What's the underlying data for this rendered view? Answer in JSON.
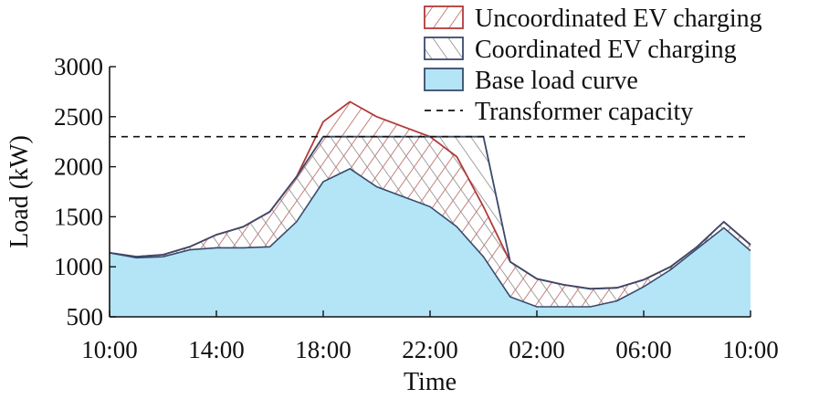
{
  "chart_data": {
    "type": "area",
    "title": "",
    "xlabel": "Time",
    "ylabel": "Load (kW)",
    "x_ticks": [
      "10:00",
      "14:00",
      "18:00",
      "22:00",
      "02:00",
      "06:00",
      "10:00"
    ],
    "y_ticks": [
      500,
      1000,
      1500,
      2000,
      2500,
      3000
    ],
    "ylim": [
      500,
      3000
    ],
    "x_hours_since_start": [
      0,
      1,
      2,
      3,
      4,
      5,
      6,
      7,
      8,
      9,
      10,
      11,
      12,
      13,
      14,
      15,
      16,
      17,
      18,
      19,
      20,
      21,
      22,
      23,
      24
    ],
    "legend_position": "top-right",
    "series": [
      {
        "name": "Uncoordinated EV charging",
        "color": "#b23a3a",
        "pattern": "hatch-forward",
        "values": [
          1140,
          1100,
          1120,
          1200,
          1320,
          1400,
          1550,
          1900,
          2450,
          2650,
          2500,
          2400,
          2300,
          2100,
          1600,
          1050,
          880,
          820,
          780,
          790,
          870,
          1000,
          1200,
          1450,
          1220
        ]
      },
      {
        "name": "Coordinated EV charging",
        "color": "#3a4a6b",
        "pattern": "hatch-back",
        "values": [
          1140,
          1100,
          1120,
          1200,
          1320,
          1400,
          1550,
          1900,
          2300,
          2300,
          2300,
          2300,
          2300,
          2300,
          2300,
          1050,
          880,
          820,
          780,
          790,
          870,
          1000,
          1200,
          1450,
          1220
        ]
      },
      {
        "name": "Base load curve",
        "color": "#b3e5f7",
        "pattern": "solid",
        "values": [
          1140,
          1090,
          1100,
          1170,
          1190,
          1190,
          1200,
          1450,
          1850,
          1980,
          1800,
          1700,
          1600,
          1400,
          1100,
          700,
          600,
          600,
          600,
          660,
          800,
          970,
          1180,
          1390,
          1160
        ]
      }
    ],
    "reference_lines": [
      {
        "name": "Transformer capacity",
        "value": 2300,
        "style": "dashed",
        "color": "#111111"
      }
    ]
  }
}
